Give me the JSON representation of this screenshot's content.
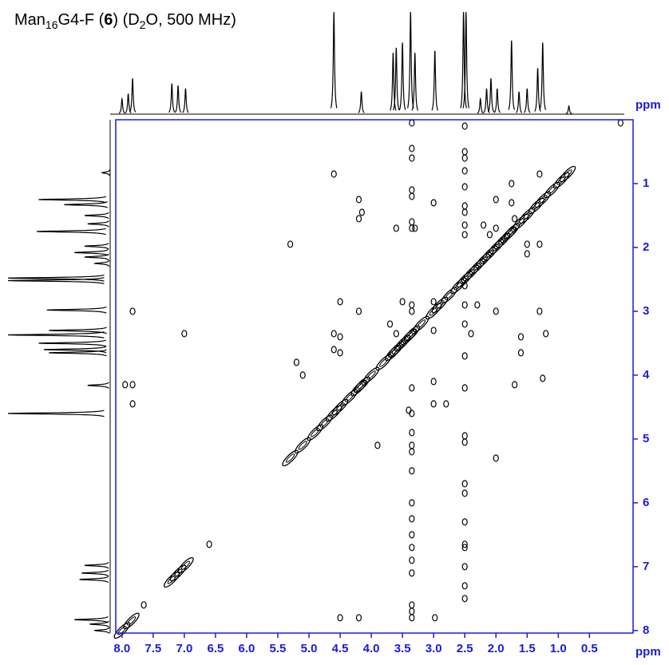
{
  "chart_data": {
    "type": "contour",
    "title": [
      "Man",
      "16",
      "G4-F (",
      "6",
      ") (D",
      "2",
      "O, 500 MHz)"
    ],
    "x_label": "ppm",
    "y_label": "ppm",
    "xlim": [
      8.1,
      -0.2
    ],
    "ylim": [
      0,
      8.04
    ],
    "xticks": [
      {
        "value": 8,
        "label": "8.0"
      },
      7.5,
      {
        "value": 7,
        "label": "7.0"
      },
      6.5,
      {
        "value": 6,
        "label": "6.0"
      },
      5.5,
      {
        "value": 5,
        "label": "5.0"
      },
      4.5,
      {
        "value": 4,
        "label": "4.0"
      },
      3.5,
      {
        "value": 3,
        "label": "3.0"
      },
      2.5,
      {
        "value": 2,
        "label": "2.0"
      },
      1.5,
      {
        "value": 1,
        "label": "1.0"
      },
      0.5
    ],
    "yticks": [
      1,
      2,
      3,
      4,
      5,
      6,
      7,
      8
    ],
    "axis_color": "#1a1adb",
    "projection": {
      "shifts": [
        8.0,
        7.9,
        7.83,
        7.2,
        7.1,
        6.98,
        4.6,
        4.16,
        3.65,
        3.6,
        3.5,
        3.37,
        3.3,
        2.98,
        2.52,
        2.48,
        2.25,
        2.15,
        2.08,
        1.98,
        1.75,
        1.63,
        1.5,
        1.33,
        1.25,
        0.83
      ],
      "intensities": [
        15,
        20,
        35,
        30,
        28,
        25,
        100,
        22,
        60,
        65,
        70,
        100,
        60,
        62,
        100,
        100,
        15,
        25,
        35,
        25,
        72,
        22,
        25,
        45,
        70,
        8
      ]
    },
    "diagonal": [
      8.0,
      7.85,
      7.2,
      7.1,
      6.98,
      5.3,
      5.1,
      4.9,
      4.75,
      4.6,
      4.5,
      4.35,
      4.2,
      4.15,
      4.0,
      3.8,
      3.65,
      3.6,
      3.5,
      3.4,
      3.35,
      3.2,
      3.0,
      2.9,
      2.75,
      2.6,
      2.5,
      2.4,
      2.3,
      2.2,
      2.1,
      2.0,
      1.9,
      1.8,
      1.75,
      1.6,
      1.5,
      1.35,
      1.25,
      1.1,
      0.95,
      0.85
    ],
    "cross_peaks": {
      "x": [
        3.35,
        3.35,
        3.35,
        3.35,
        3.35,
        3.35,
        3.35,
        3.35,
        3.35,
        3.35,
        3.35,
        3.35,
        3.35,
        3.35,
        3.35,
        3.35,
        3.35,
        3.35,
        3.35,
        3.35,
        3.35,
        3.35,
        3.35,
        3.35,
        2.5,
        2.5,
        2.5,
        2.5,
        2.5,
        2.5,
        2.5,
        2.5,
        2.5,
        2.5,
        2.5,
        2.5,
        2.5,
        2.5,
        2.5,
        2.5,
        2.5,
        2.5,
        2.5,
        2.5,
        2.5,
        2.5,
        2.5,
        2.5,
        7.83,
        7.83,
        7.95,
        7.83,
        7.0,
        4.6,
        5.3,
        4.2,
        4.15,
        4.2,
        3.6,
        3.3,
        3.0,
        4.5,
        4.2,
        3.5,
        3.0,
        2.3,
        2.0,
        1.3,
        4.6,
        4.6,
        4.5,
        4.5,
        5.2,
        5.1,
        3.6,
        3.7,
        3.0,
        2.4,
        1.6,
        1.6,
        1.2,
        1.7,
        1.25,
        3.0,
        2.8,
        3.0,
        3.4,
        3.9,
        2.0,
        6.6,
        7.65,
        4.2,
        4.5,
        2.98,
        1.75,
        1.3,
        1.75,
        2.0,
        1.7,
        2.1,
        2.0,
        1.5,
        1.3,
        1.5,
        2.2,
        0.0
      ],
      "y": [
        0.05,
        0.45,
        0.6,
        1.1,
        1.2,
        1.6,
        1.7,
        2.9,
        3.0,
        4.2,
        4.6,
        4.9,
        5.1,
        5.2,
        5.5,
        6.0,
        6.25,
        6.5,
        6.7,
        6.9,
        7.1,
        7.6,
        7.7,
        7.8,
        0.1,
        0.5,
        0.6,
        0.8,
        1.05,
        1.35,
        1.45,
        1.65,
        1.8,
        2.6,
        2.9,
        3.2,
        3.7,
        4.2,
        4.95,
        5.05,
        5.7,
        5.85,
        6.3,
        6.65,
        6.7,
        7.0,
        7.3,
        7.5,
        3.0,
        4.15,
        4.15,
        4.45,
        3.35,
        0.85,
        1.95,
        1.25,
        1.45,
        1.55,
        1.7,
        1.7,
        1.3,
        2.85,
        3.0,
        2.85,
        2.85,
        2.9,
        3.0,
        3.0,
        3.35,
        3.6,
        3.4,
        3.65,
        3.8,
        4.0,
        3.35,
        3.2,
        3.3,
        3.35,
        3.4,
        3.65,
        3.35,
        4.15,
        4.05,
        4.1,
        4.45,
        4.45,
        4.55,
        5.1,
        5.3,
        6.65,
        7.6,
        7.8,
        7.8,
        7.8,
        1.0,
        0.85,
        1.3,
        1.25,
        1.55,
        1.8,
        1.7,
        2.1,
        1.95,
        1.95,
        1.65,
        0.05
      ]
    }
  }
}
